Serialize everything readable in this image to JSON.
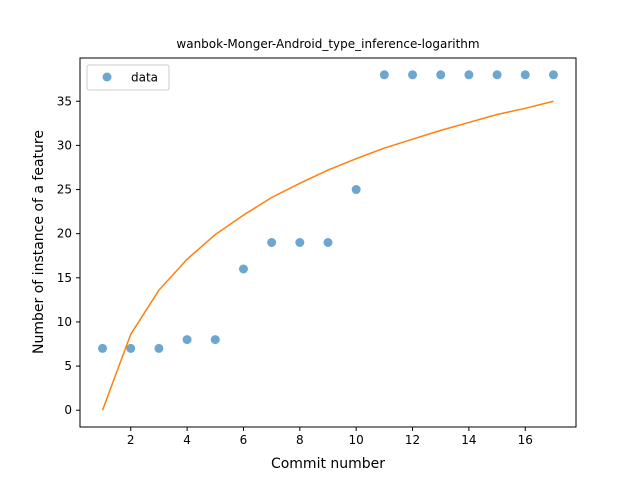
{
  "chart_data": {
    "type": "scatter",
    "title": "wanbok-Monger-Android_type_inference-logarithm",
    "xlabel": "Commit number",
    "ylabel": "Number of instance of a feature",
    "xlim": [
      0.2,
      17.8
    ],
    "ylim": [
      -1.9,
      39.9
    ],
    "xticks": [
      2,
      4,
      6,
      8,
      10,
      12,
      14,
      16
    ],
    "yticks": [
      0,
      5,
      10,
      15,
      20,
      25,
      30,
      35
    ],
    "grid": false,
    "legend_position": "upper-left",
    "series": [
      {
        "name": "data",
        "kind": "scatter",
        "color": "#1f77b4",
        "x": [
          1,
          2,
          3,
          4,
          5,
          6,
          7,
          8,
          9,
          10,
          11,
          12,
          13,
          14,
          15,
          16,
          17
        ],
        "y": [
          7,
          7,
          7,
          8,
          8,
          16,
          19,
          19,
          19,
          25,
          38,
          38,
          38,
          38,
          38,
          38,
          38
        ]
      },
      {
        "kind": "line",
        "color": "#ff7f0e",
        "x": [
          1,
          2,
          3,
          4,
          5,
          6,
          7,
          8,
          9,
          10,
          11,
          12,
          13,
          14,
          15,
          16,
          17
        ],
        "y": [
          0,
          8.6,
          13.6,
          17.1,
          19.9,
          22.1,
          24.1,
          25.7,
          27.2,
          28.5,
          29.7,
          30.7,
          31.7,
          32.6,
          33.5,
          34.2,
          35.0
        ]
      }
    ]
  }
}
